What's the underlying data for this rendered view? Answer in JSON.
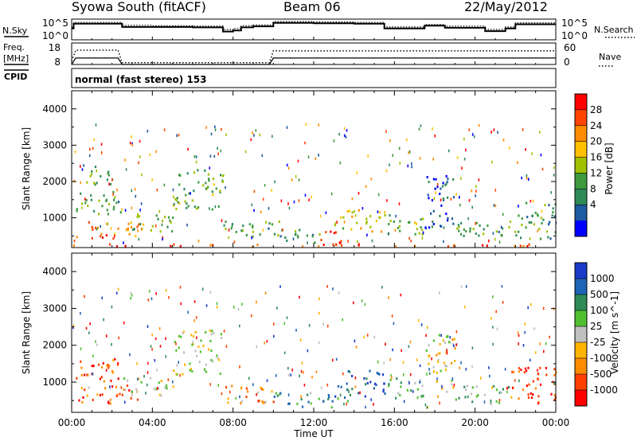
{
  "header": {
    "station": "Syowa South (fitACF)",
    "beam": "Beam 06",
    "date": "22/May/2012"
  },
  "top_panels": {
    "nsky_label": "N.Sky",
    "nsky_ticks": [
      "10^5",
      "10^0"
    ],
    "nsearch_label": "N.Search",
    "freq_label_line1": "Freq.",
    "freq_label_line2": "[MHz]",
    "freq_ticks": [
      "18",
      "8"
    ],
    "nave_ticks": [
      "60",
      "0"
    ],
    "nave_label": "Nave",
    "cpid_label": "CPID",
    "cpid_value": "normal (fast stereo) 153"
  },
  "x_axis": {
    "label": "Time UT",
    "ticks": [
      "00:00",
      "04:00",
      "08:00",
      "12:00",
      "16:00",
      "20:00",
      "00:00"
    ]
  },
  "chart_data": [
    {
      "type": "line",
      "panel": "noise",
      "x_unit": "hours UT",
      "series": [
        {
          "name": "N.Sky",
          "x": [
            0,
            0.1,
            1.5,
            2.5,
            4,
            6,
            7.5,
            8,
            8.4,
            9,
            10,
            12,
            14,
            15.5,
            16.5,
            17.5,
            18.5,
            20.5,
            21.5,
            22,
            24
          ],
          "y": [
            0.55,
            0.78,
            0.78,
            0.62,
            0.62,
            0.6,
            0.4,
            0.45,
            0.6,
            0.65,
            0.82,
            0.8,
            0.78,
            0.55,
            0.55,
            0.68,
            0.58,
            0.42,
            0.55,
            0.75,
            0.78
          ]
        },
        {
          "name": "N.Search",
          "x": [
            0,
            0.1,
            1.5,
            2.5,
            4,
            6,
            7.5,
            8,
            8.4,
            9,
            10,
            12,
            14,
            15.5,
            16.5,
            17.5,
            18.5,
            20.5,
            21.5,
            22,
            24
          ],
          "y": [
            0.6,
            0.84,
            0.84,
            0.7,
            0.68,
            0.66,
            0.5,
            0.55,
            0.68,
            0.72,
            0.88,
            0.86,
            0.84,
            0.62,
            0.62,
            0.74,
            0.66,
            0.5,
            0.62,
            0.82,
            0.84
          ]
        }
      ]
    },
    {
      "type": "line",
      "panel": "frequency",
      "x_unit": "hours UT",
      "series": [
        {
          "name": "Freq.",
          "x": [
            0,
            0.2,
            2.3,
            2.5,
            9.8,
            10,
            24
          ],
          "y": [
            8,
            11,
            11,
            8,
            8,
            11,
            11
          ]
        },
        {
          "name": "Nave",
          "x": [
            0,
            0.2,
            2.3,
            2.5,
            9.8,
            10,
            24
          ],
          "y": [
            10,
            40,
            40,
            5,
            5,
            38,
            38
          ]
        }
      ]
    },
    {
      "type": "heatmap",
      "panel": "power",
      "xlabel": "Time UT",
      "ylabel": "Slant Range [km]",
      "xlim": [
        0,
        24
      ],
      "ylim": [
        180,
        4500
      ],
      "yticks": [
        1000,
        2000,
        3000,
        4000
      ],
      "colorbar": {
        "label": "Power [dB]",
        "ticks": [
          "28",
          "24",
          "20",
          "16",
          "12",
          "8",
          "4"
        ],
        "colors": [
          "#ff0000",
          "#ff4500",
          "#ff8c00",
          "#ffc000",
          "#a0c000",
          "#3d9a3d",
          "#2e8b57",
          "#1e5aa0",
          "#0000ff"
        ]
      },
      "cells": [
        [
          0.3,
          3.3,
          600,
          900,
          0.75
        ],
        [
          0.2,
          3.3,
          400,
          600,
          0.85
        ],
        [
          0.2,
          2.5,
          1000,
          1700,
          0.35
        ],
        [
          0.5,
          2.3,
          1900,
          2400,
          0.35
        ],
        [
          2.5,
          5.0,
          600,
          1100,
          0.4
        ],
        [
          5.0,
          7.5,
          1200,
          2400,
          0.4
        ],
        [
          7.5,
          10.5,
          400,
          900,
          0.35
        ],
        [
          10.5,
          12.3,
          300,
          700,
          0.35
        ],
        [
          12.3,
          13.5,
          250,
          650,
          0.95
        ],
        [
          13.0,
          15.5,
          600,
          1200,
          0.55
        ],
        [
          15.5,
          17.5,
          500,
          1100,
          0.4
        ],
        [
          17.5,
          19.0,
          700,
          2300,
          0.15
        ],
        [
          19.0,
          22.5,
          400,
          900,
          0.35
        ],
        [
          22.0,
          24.0,
          400,
          1400,
          0.3
        ],
        [
          0.0,
          24.0,
          180,
          260,
          0.9
        ]
      ]
    },
    {
      "type": "heatmap",
      "panel": "velocity",
      "xlabel": "Time UT",
      "ylabel": "Slant Range [km]",
      "xlim": [
        0,
        24
      ],
      "ylim": [
        180,
        4500
      ],
      "yticks": [
        1000,
        2000,
        3000,
        4000
      ],
      "colorbar": {
        "label": "Velocity [m s^-1]",
        "ticks": [
          "1000",
          "500",
          "100",
          "25",
          "-25",
          "-100",
          "-500",
          "-1000"
        ],
        "colors": [
          "#1a3cc8",
          "#1e64b4",
          "#2e8b57",
          "#50c030",
          "#c0c0c0",
          "#ffb400",
          "#ff8c00",
          "#ff4000",
          "#ff0000"
        ]
      },
      "cells": [
        [
          0.2,
          3.3,
          400,
          900,
          0.15
        ],
        [
          0.2,
          2.5,
          1000,
          1700,
          0.15
        ],
        [
          2.5,
          5.0,
          600,
          1100,
          0.5
        ],
        [
          5.0,
          7.5,
          1200,
          2400,
          0.5
        ],
        [
          7.5,
          10.0,
          400,
          900,
          0.3
        ],
        [
          10.0,
          12.3,
          300,
          700,
          0.72
        ],
        [
          12.3,
          14.0,
          250,
          650,
          0.78
        ],
        [
          13.0,
          15.5,
          600,
          1300,
          0.88
        ],
        [
          15.5,
          17.5,
          500,
          1100,
          0.7
        ],
        [
          17.5,
          19.0,
          700,
          2300,
          0.45
        ],
        [
          19.0,
          22.0,
          400,
          900,
          0.6
        ],
        [
          21.5,
          24.0,
          400,
          1400,
          0.1
        ]
      ]
    }
  ]
}
